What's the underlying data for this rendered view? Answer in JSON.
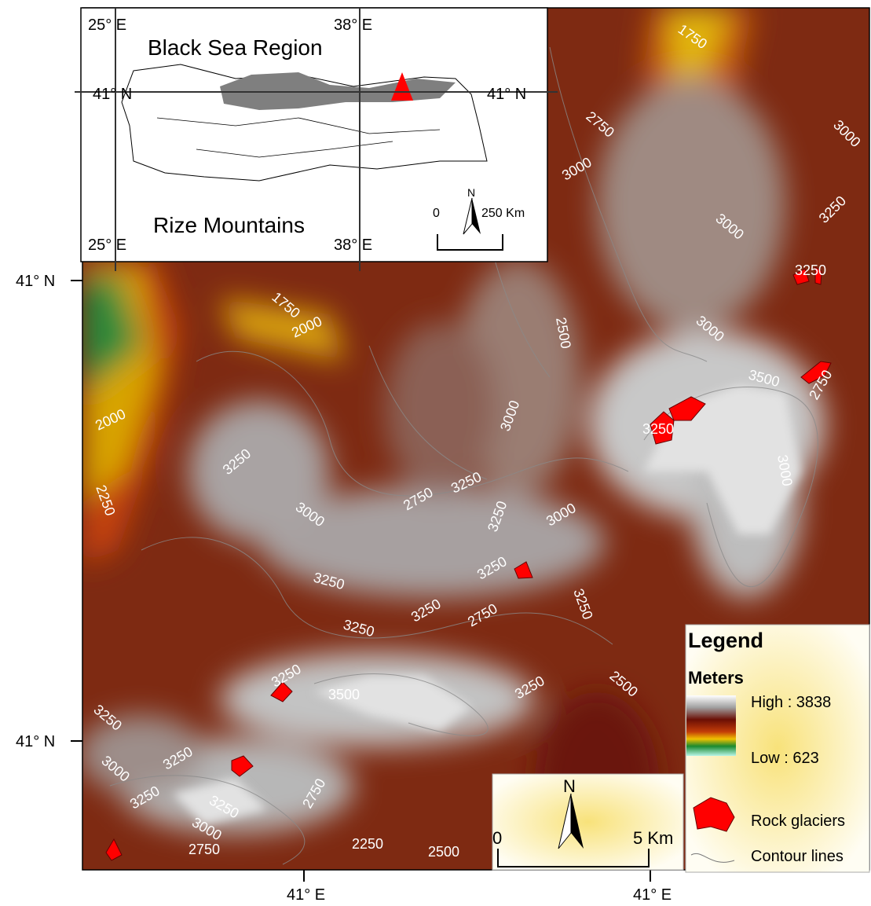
{
  "inset": {
    "title": "Black Sea Region",
    "subtitle": "Rize Mountains",
    "lon_labels": [
      "25° E",
      "38° E",
      "25° E",
      "38° E"
    ],
    "lat_labels": [
      "41° N",
      "41° N"
    ],
    "scale": {
      "north": "N",
      "start": "0",
      "end": "250 Km"
    }
  },
  "graticule": {
    "lat_labels": [
      "41° N",
      "41° N"
    ],
    "lon_labels": [
      "41° E",
      "41° E"
    ]
  },
  "contour_labels": [
    1750,
    2750,
    3000,
    3000,
    3000,
    3250,
    3250,
    1750,
    2000,
    2500,
    3000,
    3500,
    2750,
    3250,
    3000,
    3000,
    2000,
    2250,
    3250,
    3000,
    3250,
    2750,
    3250,
    3000,
    3250,
    3250,
    3250,
    3250,
    3250,
    2750,
    2500,
    3250,
    3250,
    3500,
    3250,
    3000,
    3250,
    3250,
    3000,
    2750,
    3250,
    2750,
    2250,
    2500
  ],
  "legend": {
    "title": "Legend",
    "ramp_title": "Meters",
    "high": "High : 3838",
    "low": "Low : 623",
    "items": [
      "Rock glaciers",
      "Contour lines"
    ]
  },
  "scale": {
    "north": "N",
    "start": "0",
    "end": "5 Km"
  }
}
